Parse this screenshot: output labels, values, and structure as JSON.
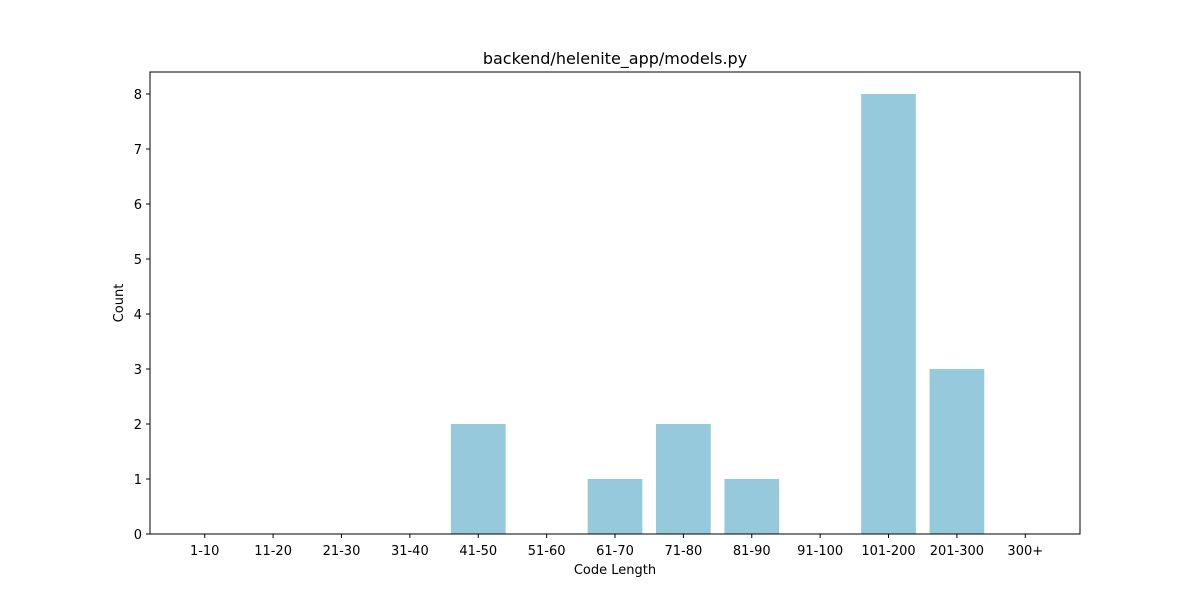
{
  "chart_data": {
    "type": "bar",
    "title": "backend/helenite_app/models.py",
    "xlabel": "Code Length",
    "ylabel": "Count",
    "categories": [
      "1-10",
      "11-20",
      "21-30",
      "31-40",
      "41-50",
      "51-60",
      "61-70",
      "71-80",
      "81-90",
      "91-100",
      "101-200",
      "201-300",
      "300+"
    ],
    "values": [
      0,
      0,
      0,
      0,
      2,
      0,
      1,
      2,
      1,
      0,
      8,
      3,
      0
    ],
    "ylim": [
      0,
      8.4
    ],
    "yticks": [
      0,
      1,
      2,
      3,
      4,
      5,
      6,
      7,
      8
    ],
    "bar_color": "#96c9dc",
    "grid": false,
    "legend": "none"
  }
}
